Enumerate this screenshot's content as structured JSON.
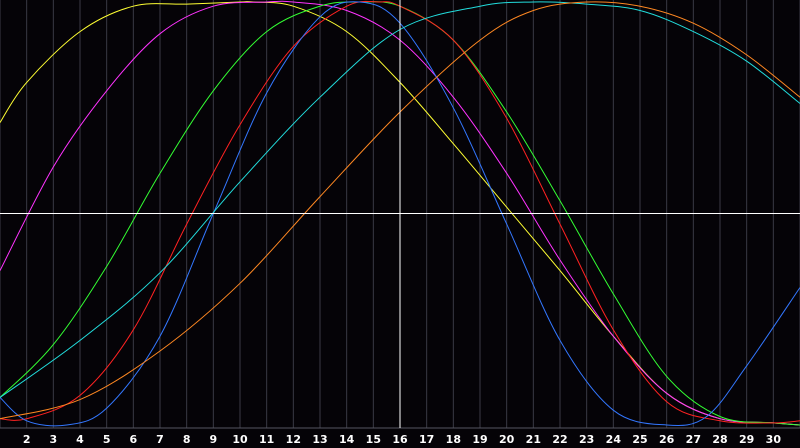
{
  "chart_data": {
    "type": "line",
    "title": "",
    "xlabel": "",
    "ylabel": "",
    "xlim": [
      1,
      31
    ],
    "ylim": [
      -1.0,
      1.0
    ],
    "grid": true,
    "legend": "none",
    "x_ticks": [
      "2",
      "3",
      "4",
      "5",
      "6",
      "7",
      "8",
      "9",
      "10",
      "11",
      "12",
      "13",
      "14",
      "15",
      "16",
      "17",
      "18",
      "19",
      "20",
      "21",
      "22",
      "23",
      "24",
      "25",
      "26",
      "27",
      "28",
      "29",
      "30"
    ],
    "x_tick_values": [
      2,
      3,
      4,
      5,
      6,
      7,
      8,
      9,
      10,
      11,
      12,
      13,
      14,
      15,
      16,
      17,
      18,
      19,
      20,
      21,
      22,
      23,
      24,
      25,
      26,
      27,
      28,
      29,
      30
    ],
    "cursor_x": 16,
    "cursor_y": 0.0,
    "series": [
      {
        "color": "#ffff33",
        "x": [
          1,
          2,
          4,
          6,
          8,
          10,
          10.5,
          12,
          14,
          16,
          18,
          20,
          22,
          24,
          26,
          28,
          30,
          31
        ],
        "y": [
          0.43,
          0.62,
          0.86,
          0.98,
          0.99,
          1.0,
          1.0,
          0.98,
          0.86,
          0.62,
          0.33,
          0.03,
          -0.27,
          -0.58,
          -0.85,
          -0.97,
          -0.99,
          -1.0
        ]
      },
      {
        "color": "#ff33ff",
        "x": [
          1,
          3,
          5,
          7,
          9,
          11,
          12,
          14,
          16,
          18,
          20,
          22,
          24,
          26,
          28,
          30,
          31
        ],
        "y": [
          -0.27,
          0.22,
          0.58,
          0.85,
          0.98,
          1.0,
          1.0,
          0.96,
          0.82,
          0.55,
          0.19,
          -0.22,
          -0.58,
          -0.85,
          -0.97,
          -0.99,
          -1.0
        ]
      },
      {
        "color": "#33ff33",
        "x": [
          1,
          3,
          5,
          7,
          9,
          11,
          13,
          14.5,
          16,
          18,
          20,
          22,
          24,
          26,
          28,
          30,
          31
        ],
        "y": [
          -0.87,
          -0.62,
          -0.25,
          0.19,
          0.58,
          0.86,
          0.98,
          1.0,
          0.98,
          0.82,
          0.48,
          0.06,
          -0.38,
          -0.77,
          -0.96,
          -0.99,
          -1.0
        ]
      },
      {
        "color": "#ff2222",
        "x": [
          1,
          2,
          4,
          6,
          8,
          10,
          12,
          14,
          15.2,
          16,
          18,
          20,
          22,
          24,
          26,
          28,
          30,
          31
        ],
        "y": [
          -0.97,
          -0.97,
          -0.86,
          -0.55,
          -0.05,
          0.42,
          0.79,
          0.98,
          1.0,
          0.98,
          0.82,
          0.45,
          -0.05,
          -0.55,
          -0.89,
          -0.98,
          -0.99,
          -0.98
        ]
      },
      {
        "color": "#3377ff",
        "x": [
          1,
          2,
          3.5,
          5,
          7,
          9,
          11,
          13,
          14.5,
          16,
          18,
          20,
          22,
          24,
          26,
          27.5,
          29,
          31
        ],
        "y": [
          -0.87,
          -0.98,
          -1.0,
          -0.92,
          -0.58,
          0.0,
          0.57,
          0.93,
          1.0,
          0.9,
          0.5,
          -0.05,
          -0.6,
          -0.93,
          -1.0,
          -0.96,
          -0.72,
          -0.35
        ]
      },
      {
        "color": "#22dddd",
        "x": [
          1,
          4,
          7,
          10,
          13,
          16,
          19,
          21,
          23,
          25,
          27,
          29,
          31
        ],
        "y": [
          -0.87,
          -0.6,
          -0.28,
          0.15,
          0.55,
          0.87,
          0.98,
          1.0,
          0.99,
          0.96,
          0.86,
          0.72,
          0.52
        ]
      },
      {
        "color": "#ff8822",
        "x": [
          1,
          4,
          7,
          10,
          13,
          16,
          19,
          21,
          23,
          25,
          27,
          29,
          31
        ],
        "y": [
          -0.97,
          -0.88,
          -0.65,
          -0.33,
          0.08,
          0.48,
          0.82,
          0.96,
          1.0,
          0.98,
          0.9,
          0.75,
          0.55
        ]
      }
    ]
  }
}
